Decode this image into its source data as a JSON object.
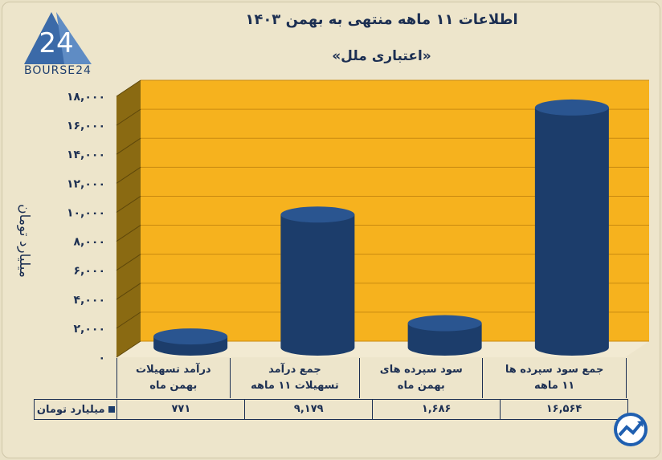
{
  "logo": {
    "number": "24",
    "text": "BOURSE24"
  },
  "header": {
    "title": "اطلاعات ۱۱ ماهه منتهی به بهمن ۱۴۰۳",
    "subtitle": "«اعتباری ملل»"
  },
  "colors": {
    "plot_bg": "#f6b21e",
    "bar": "#1c3d6b",
    "side_wall": "#8a6a12",
    "text": "#1c2f52"
  },
  "chart_data": {
    "type": "bar",
    "title": "اطلاعات ۱۱ ماهه منتهی به بهمن ۱۴۰۳",
    "subtitle": "«اعتباری ملل»",
    "ylabel": "میلیارد تومان",
    "ylim": [
      0,
      18000
    ],
    "yticks": [
      {
        "v": 0,
        "label": "۰"
      },
      {
        "v": 2000,
        "label": "۲,۰۰۰"
      },
      {
        "v": 4000,
        "label": "۴,۰۰۰"
      },
      {
        "v": 6000,
        "label": "۶,۰۰۰"
      },
      {
        "v": 8000,
        "label": "۸,۰۰۰"
      },
      {
        "v": 10000,
        "label": "۱۰,۰۰۰"
      },
      {
        "v": 12000,
        "label": "۱۲,۰۰۰"
      },
      {
        "v": 14000,
        "label": "۱۴,۰۰۰"
      },
      {
        "v": 16000,
        "label": "۱۶,۰۰۰"
      },
      {
        "v": 18000,
        "label": "۱۸,۰۰۰"
      }
    ],
    "categories": [
      {
        "line1": "درآمد تسهیلات",
        "line2": "بهمن ماه"
      },
      {
        "line1": "جمع درآمد",
        "line2": "تسهیلات ۱۱ ماهه"
      },
      {
        "line1": "سود سپرده های",
        "line2": "بهمن ماه"
      },
      {
        "line1": "جمع سود سپرده ها",
        "line2": "۱۱ ماهه"
      }
    ],
    "series": [
      {
        "name": "میلیارد تومان",
        "values": [
          771,
          9179,
          1686,
          16564
        ],
        "value_labels": [
          "۷۷۱",
          "۹,۱۷۹",
          "۱,۶۸۶",
          "۱۶,۵۶۴"
        ]
      }
    ],
    "grid": true
  }
}
